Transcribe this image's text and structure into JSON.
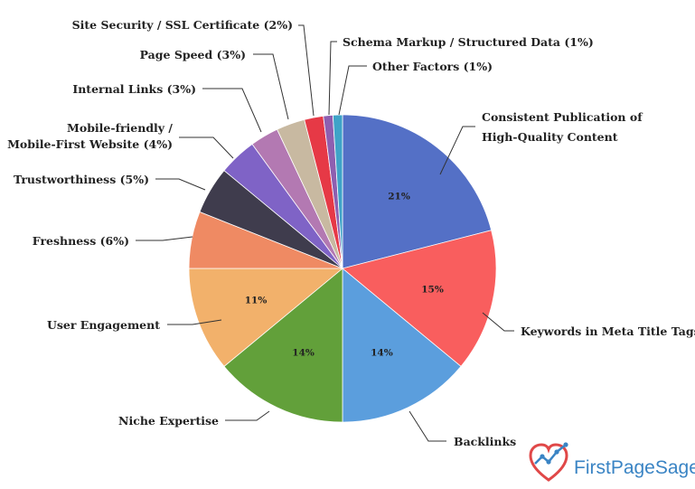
{
  "chart_data": {
    "type": "pie",
    "title": "",
    "slices": [
      {
        "label": "Consistent Publication of High-Quality Content",
        "lines": [
          "Consistent Publication of",
          "High-Quality Content"
        ],
        "value": 21,
        "pct_label": "21%",
        "color": "#5470c6"
      },
      {
        "label": "Keywords in Meta Title Tags",
        "lines": [
          "Keywords in Meta Title Tags"
        ],
        "value": 15,
        "pct_label": "15%",
        "color": "#f95e5e"
      },
      {
        "label": "Backlinks",
        "lines": [
          "Backlinks"
        ],
        "value": 14,
        "pct_label": "14%",
        "color": "#5b9edd"
      },
      {
        "label": "Niche Expertise",
        "lines": [
          "Niche Expertise"
        ],
        "value": 14,
        "pct_label": "14%",
        "color": "#62a03a"
      },
      {
        "label": "User Engagement",
        "lines": [
          "User Engagement"
        ],
        "value": 11,
        "pct_label": "11%",
        "color": "#f2b16b"
      },
      {
        "label": "Freshness (6%)",
        "lines": [
          "Freshness (6%)"
        ],
        "value": 6,
        "pct_label": "",
        "color": "#ef8a63"
      },
      {
        "label": "Trustworthiness (5%)",
        "lines": [
          "Trustworthiness (5%)"
        ],
        "value": 5,
        "pct_label": "",
        "color": "#3f3c4d"
      },
      {
        "label": "Mobile-friendly / Mobile-First Website (4%)",
        "lines": [
          "Mobile-friendly /",
          "Mobile-First Website (4%)"
        ],
        "value": 4,
        "pct_label": "",
        "color": "#7f63c6"
      },
      {
        "label": "Internal Links (3%)",
        "lines": [
          "Internal Links (3%)"
        ],
        "value": 3,
        "pct_label": "",
        "color": "#b379b2"
      },
      {
        "label": "Page Speed (3%)",
        "lines": [
          "Page Speed (3%)"
        ],
        "value": 3,
        "pct_label": "",
        "color": "#c8b9a1"
      },
      {
        "label": "Site Security / SSL Certificate (2%)",
        "lines": [
          "Site Security / SSL Certificate (2%)"
        ],
        "value": 2,
        "pct_label": "",
        "color": "#e63946"
      },
      {
        "label": "Schema Markup / Structured Data (1%)",
        "lines": [
          "Schema Markup / Structured Data (1%)"
        ],
        "value": 1,
        "pct_label": "",
        "color": "#8e5fb0"
      },
      {
        "label": "Other Factors (1%)",
        "lines": [
          "Other Factors (1%)"
        ],
        "value": 1,
        "pct_label": "",
        "color": "#3fa3c8"
      }
    ]
  },
  "brand": {
    "name": "FirstPageSage",
    "logo_icon": "heart-graph-icon",
    "text_color": "#3a84c4",
    "heart_color": "#e04848"
  }
}
